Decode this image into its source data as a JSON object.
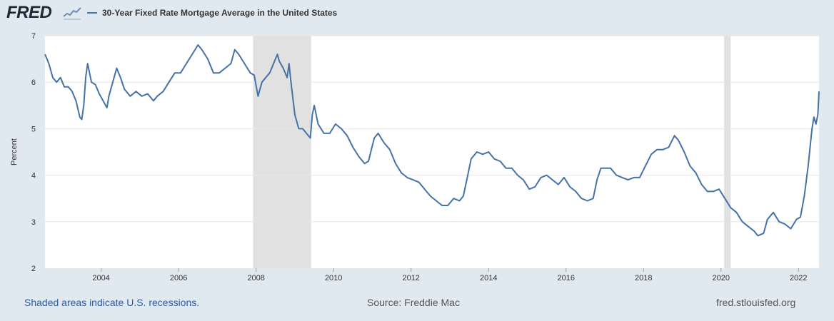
{
  "header": {
    "logo_text": "FRED",
    "logo_icon": "line-graph-icon",
    "legend_label": "30-Year Fixed Rate Mortgage Average in the United States"
  },
  "footer": {
    "recessions_note": "Shaded areas indicate U.S. recessions.",
    "source": "Source: Freddie Mac",
    "site": "fred.stlouisfed.org"
  },
  "colors": {
    "line": "#4572a7",
    "recession": "#e1e1e1",
    "grid": "#e6e6e6",
    "background": "#e1e9f0",
    "plot": "#ffffff"
  },
  "chart_data": {
    "type": "line",
    "title": "30-Year Fixed Rate Mortgage Average in the United States",
    "xlabel": "",
    "ylabel": "Percent",
    "xlim": [
      2002.55,
      2022.53
    ],
    "ylim": [
      2,
      7
    ],
    "y_ticks": [
      2,
      3,
      4,
      5,
      6,
      7
    ],
    "x_ticks": [
      2004,
      2006,
      2008,
      2010,
      2012,
      2014,
      2016,
      2018,
      2020,
      2022
    ],
    "grid": "horizontal",
    "legend_placement": "top-left",
    "recessions": [
      [
        2007.92,
        2009.42
      ],
      [
        2020.08,
        2020.25
      ]
    ],
    "series": [
      {
        "name": "30-Year Fixed Rate Mortgage Average in the United States",
        "x": [
          2002.55,
          2002.65,
          2002.75,
          2002.85,
          2002.95,
          2003.05,
          2003.15,
          2003.25,
          2003.35,
          2003.45,
          2003.5,
          2003.55,
          2003.6,
          2003.65,
          2003.75,
          2003.85,
          2003.95,
          2004.05,
          2004.15,
          2004.2,
          2004.3,
          2004.4,
          2004.5,
          2004.6,
          2004.75,
          2004.9,
          2005.05,
          2005.2,
          2005.35,
          2005.45,
          2005.6,
          2005.75,
          2005.9,
          2006.05,
          2006.2,
          2006.35,
          2006.5,
          2006.6,
          2006.75,
          2006.9,
          2007.05,
          2007.2,
          2007.35,
          2007.45,
          2007.55,
          2007.7,
          2007.85,
          2007.95,
          2008.05,
          2008.15,
          2008.25,
          2008.35,
          2008.45,
          2008.55,
          2008.6,
          2008.7,
          2008.8,
          2008.85,
          2008.9,
          2009.0,
          2009.1,
          2009.2,
          2009.3,
          2009.4,
          2009.45,
          2009.5,
          2009.6,
          2009.75,
          2009.9,
          2010.05,
          2010.2,
          2010.35,
          2010.5,
          2010.65,
          2010.8,
          2010.9,
          2011.05,
          2011.15,
          2011.3,
          2011.45,
          2011.6,
          2011.75,
          2011.9,
          2012.05,
          2012.2,
          2012.35,
          2012.5,
          2012.65,
          2012.8,
          2012.95,
          2013.1,
          2013.25,
          2013.35,
          2013.45,
          2013.55,
          2013.7,
          2013.85,
          2014.0,
          2014.15,
          2014.3,
          2014.45,
          2014.6,
          2014.75,
          2014.9,
          2015.05,
          2015.2,
          2015.35,
          2015.5,
          2015.65,
          2015.8,
          2015.95,
          2016.1,
          2016.25,
          2016.4,
          2016.55,
          2016.7,
          2016.8,
          2016.9,
          2017.0,
          2017.15,
          2017.3,
          2017.45,
          2017.6,
          2017.75,
          2017.9,
          2018.05,
          2018.2,
          2018.35,
          2018.5,
          2018.65,
          2018.8,
          2018.9,
          2019.05,
          2019.2,
          2019.35,
          2019.5,
          2019.65,
          2019.8,
          2019.95,
          2020.1,
          2020.25,
          2020.4,
          2020.55,
          2020.7,
          2020.85,
          2020.95,
          2021.1,
          2021.2,
          2021.35,
          2021.5,
          2021.65,
          2021.8,
          2021.95,
          2022.05,
          2022.15,
          2022.25,
          2022.35,
          2022.4,
          2022.45,
          2022.5,
          2022.53
        ],
        "values": [
          6.6,
          6.4,
          6.1,
          6.0,
          6.1,
          5.9,
          5.9,
          5.8,
          5.6,
          5.25,
          5.2,
          5.5,
          6.1,
          6.4,
          6.0,
          5.95,
          5.75,
          5.6,
          5.45,
          5.7,
          6.0,
          6.3,
          6.1,
          5.85,
          5.7,
          5.8,
          5.7,
          5.75,
          5.6,
          5.7,
          5.8,
          6.0,
          6.2,
          6.2,
          6.4,
          6.6,
          6.8,
          6.7,
          6.5,
          6.2,
          6.2,
          6.3,
          6.4,
          6.7,
          6.6,
          6.4,
          6.2,
          6.15,
          5.7,
          6.0,
          6.1,
          6.2,
          6.4,
          6.6,
          6.45,
          6.3,
          6.1,
          6.4,
          6.0,
          5.3,
          5.0,
          5.0,
          4.9,
          4.8,
          5.3,
          5.5,
          5.1,
          4.9,
          4.9,
          5.1,
          5.0,
          4.85,
          4.6,
          4.4,
          4.25,
          4.3,
          4.8,
          4.9,
          4.7,
          4.55,
          4.25,
          4.05,
          3.95,
          3.9,
          3.85,
          3.7,
          3.55,
          3.45,
          3.35,
          3.35,
          3.5,
          3.45,
          3.55,
          3.95,
          4.35,
          4.5,
          4.45,
          4.5,
          4.35,
          4.3,
          4.15,
          4.15,
          4.0,
          3.9,
          3.7,
          3.75,
          3.95,
          4.0,
          3.9,
          3.8,
          3.95,
          3.75,
          3.65,
          3.5,
          3.45,
          3.5,
          3.9,
          4.15,
          4.15,
          4.15,
          4.0,
          3.95,
          3.9,
          3.95,
          3.95,
          4.2,
          4.45,
          4.55,
          4.55,
          4.6,
          4.85,
          4.75,
          4.5,
          4.2,
          4.05,
          3.8,
          3.65,
          3.65,
          3.7,
          3.5,
          3.3,
          3.2,
          3.0,
          2.9,
          2.8,
          2.7,
          2.75,
          3.05,
          3.2,
          3.0,
          2.95,
          2.85,
          3.05,
          3.1,
          3.55,
          4.2,
          5.0,
          5.25,
          5.1,
          5.3,
          5.8
        ]
      }
    ]
  }
}
